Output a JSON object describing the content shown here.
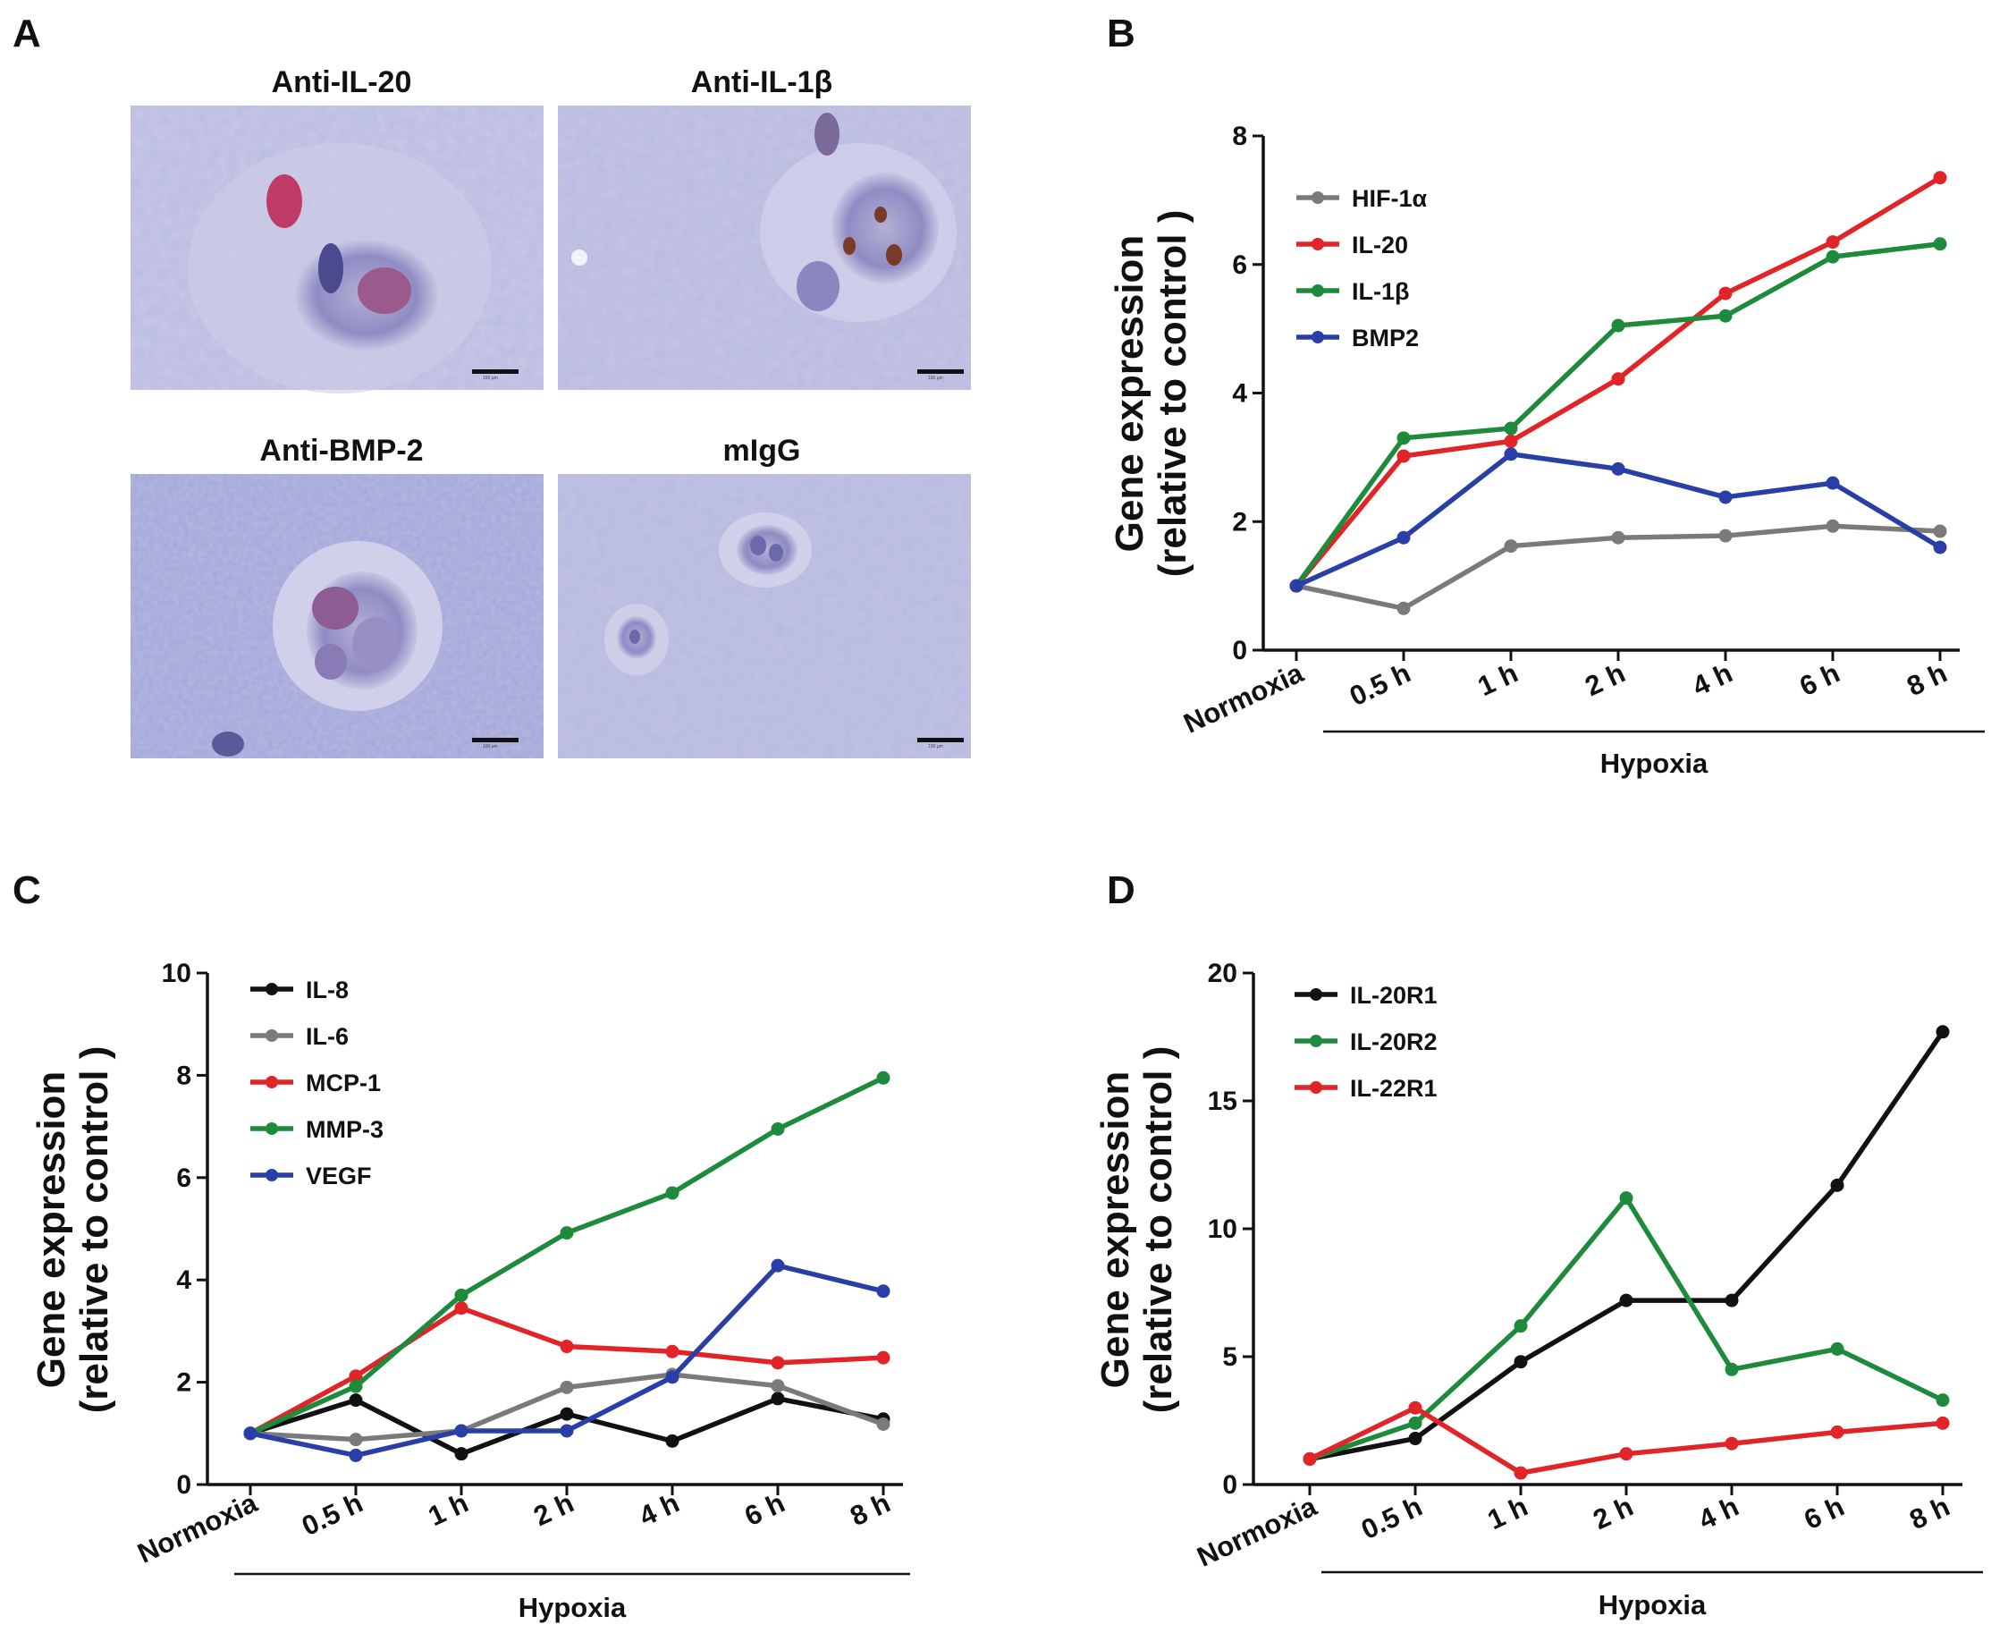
{
  "panels": {
    "A": "A",
    "B": "B",
    "C": "C",
    "D": "D"
  },
  "micrographs": [
    {
      "title": "Anti-IL-20",
      "scale": "100 µm"
    },
    {
      "title": "Anti-IL-1β",
      "scale": "100 µm"
    },
    {
      "title": "Anti-BMP-2",
      "scale": "100 µm"
    },
    {
      "title": "mIgG",
      "scale": "100 µm"
    }
  ],
  "chart_data": [
    {
      "id": "B",
      "type": "line",
      "categories": [
        "Normoxia",
        "0.5 h",
        "1 h",
        "2 h",
        "4 h",
        "6 h",
        "8 h"
      ],
      "ylabel_line1": "Gene expression",
      "ylabel_line2": "(relative to control )",
      "group_label": "Hypoxia",
      "ylim": [
        0,
        8
      ],
      "yticks": [
        "0",
        "2",
        "4",
        "6",
        "8"
      ],
      "series": [
        {
          "name": "HIF-1α",
          "color": "#7a7a7a",
          "values": [
            1.0,
            0.65,
            1.62,
            1.75,
            1.78,
            1.93,
            1.85
          ]
        },
        {
          "name": "IL-20",
          "color": "#e02427",
          "values": [
            1.0,
            3.02,
            3.25,
            4.22,
            5.55,
            6.35,
            7.35
          ]
        },
        {
          "name": "IL-1β",
          "color": "#1e8a3c",
          "values": [
            1.0,
            3.3,
            3.45,
            5.05,
            5.2,
            6.12,
            6.32
          ]
        },
        {
          "name": "BMP2",
          "color": "#2a3ea8",
          "values": [
            1.0,
            1.75,
            3.05,
            2.82,
            2.38,
            2.6,
            1.6
          ]
        }
      ]
    },
    {
      "id": "C",
      "type": "line",
      "categories": [
        "Normoxia",
        "0.5 h",
        "1 h",
        "2 h",
        "4 h",
        "6 h",
        "8 h"
      ],
      "ylabel_line1": "Gene expression",
      "ylabel_line2": "(relative to control )",
      "group_label": "Hypoxia",
      "ylim": [
        0,
        10
      ],
      "yticks": [
        "0",
        "2",
        "4",
        "6",
        "8",
        "10"
      ],
      "series": [
        {
          "name": "IL-8",
          "color": "#111111",
          "values": [
            1.0,
            1.65,
            0.6,
            1.38,
            0.85,
            1.68,
            1.28
          ]
        },
        {
          "name": "IL-6",
          "color": "#7a7a7a",
          "values": [
            1.0,
            0.88,
            1.05,
            1.9,
            2.15,
            1.93,
            1.18
          ]
        },
        {
          "name": "MCP-1",
          "color": "#e02427",
          "values": [
            1.0,
            2.12,
            3.45,
            2.7,
            2.6,
            2.38,
            2.48
          ]
        },
        {
          "name": "MMP-3",
          "color": "#1e8a3c",
          "values": [
            1.0,
            1.92,
            3.7,
            4.92,
            5.7,
            6.95,
            7.95
          ]
        },
        {
          "name": "VEGF",
          "color": "#2a3ea8",
          "values": [
            1.0,
            0.57,
            1.05,
            1.05,
            2.1,
            4.28,
            3.78
          ]
        }
      ]
    },
    {
      "id": "D",
      "type": "line",
      "categories": [
        "Normoxia",
        "0.5 h",
        "1 h",
        "2 h",
        "4 h",
        "6 h",
        "8 h"
      ],
      "ylabel_line1": "Gene expression",
      "ylabel_line2": "(relative to control )",
      "group_label": "Hypoxia",
      "ylim": [
        0,
        20
      ],
      "yticks": [
        "0",
        "5",
        "10",
        "15",
        "20"
      ],
      "series": [
        {
          "name": "IL-20R1",
          "color": "#111111",
          "values": [
            1.0,
            1.8,
            4.8,
            7.2,
            7.2,
            11.7,
            17.7
          ]
        },
        {
          "name": "IL-20R2",
          "color": "#1e8a3c",
          "values": [
            1.0,
            2.4,
            6.2,
            11.2,
            4.5,
            5.3,
            3.3
          ]
        },
        {
          "name": "IL-22R1",
          "color": "#e02427",
          "values": [
            1.0,
            3.0,
            0.45,
            1.2,
            1.6,
            2.05,
            2.4
          ]
        }
      ]
    }
  ]
}
